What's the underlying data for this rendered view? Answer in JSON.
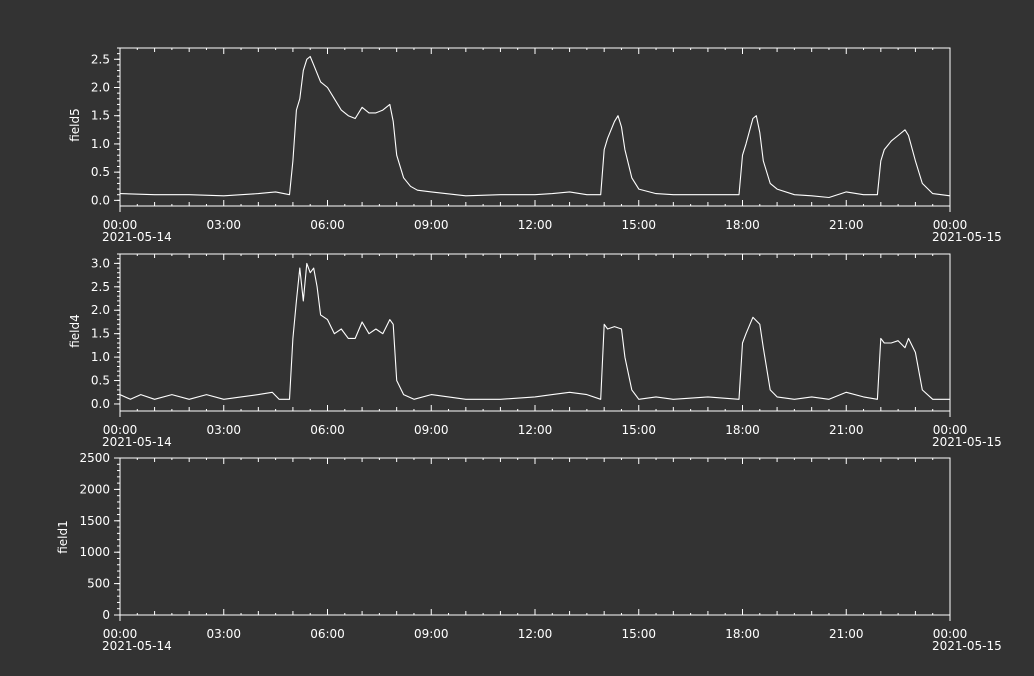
{
  "colors": {
    "background": "#333333",
    "foreground": "#ffffff"
  },
  "chart_data": [
    {
      "type": "line",
      "ylabel": "field5",
      "xlim": [
        "2021-05-14 00:00",
        "2021-05-15 00:00"
      ],
      "ylim": [
        -0.1,
        2.7
      ],
      "yticks": [
        0.0,
        0.5,
        1.0,
        1.5,
        2.0,
        2.5
      ],
      "ytick_labels": [
        "0.0",
        "0.5",
        "1.0",
        "1.5",
        "2.0",
        "2.5"
      ],
      "xtick_labels": [
        "00:00",
        "03:00",
        "06:00",
        "09:00",
        "12:00",
        "15:00",
        "18:00",
        "21:00",
        "00:00"
      ],
      "xdate_labels": [
        "2021-05-14",
        "2021-05-15"
      ],
      "series": [
        {
          "x_hours": [
            0,
            1,
            2,
            3,
            4,
            4.5,
            4.9,
            5.0,
            5.1,
            5.2,
            5.3,
            5.4,
            5.5,
            5.6,
            5.8,
            6.0,
            6.2,
            6.4,
            6.6,
            6.8,
            7.0,
            7.2,
            7.4,
            7.6,
            7.8,
            7.9,
            8.0,
            8.2,
            8.4,
            8.6,
            9,
            10,
            11,
            12,
            12.5,
            13,
            13.5,
            13.9,
            14.0,
            14.1,
            14.3,
            14.4,
            14.5,
            14.6,
            14.8,
            15.0,
            15.5,
            16,
            17,
            17.9,
            18.0,
            18.1,
            18.3,
            18.4,
            18.5,
            18.6,
            18.8,
            19.0,
            19.5,
            20,
            20.5,
            21,
            21.5,
            21.9,
            22.0,
            22.1,
            22.3,
            22.5,
            22.7,
            22.8,
            23.0,
            23.2,
            23.5,
            24
          ],
          "y": [
            0.12,
            0.1,
            0.1,
            0.08,
            0.12,
            0.15,
            0.1,
            0.7,
            1.6,
            1.8,
            2.3,
            2.5,
            2.55,
            2.4,
            2.1,
            2.0,
            1.8,
            1.6,
            1.5,
            1.45,
            1.65,
            1.55,
            1.55,
            1.6,
            1.7,
            1.4,
            0.8,
            0.4,
            0.25,
            0.18,
            0.15,
            0.08,
            0.1,
            0.1,
            0.12,
            0.15,
            0.1,
            0.1,
            0.9,
            1.1,
            1.4,
            1.5,
            1.3,
            0.9,
            0.4,
            0.2,
            0.12,
            0.1,
            0.1,
            0.1,
            0.8,
            1.0,
            1.45,
            1.5,
            1.2,
            0.7,
            0.3,
            0.2,
            0.1,
            0.08,
            0.05,
            0.15,
            0.1,
            0.1,
            0.7,
            0.9,
            1.05,
            1.15,
            1.25,
            1.15,
            0.7,
            0.3,
            0.12,
            0.08
          ]
        }
      ]
    },
    {
      "type": "line",
      "ylabel": "field4",
      "xlim": [
        "2021-05-14 00:00",
        "2021-05-15 00:00"
      ],
      "ylim": [
        -0.15,
        3.2
      ],
      "yticks": [
        0.0,
        0.5,
        1.0,
        1.5,
        2.0,
        2.5,
        3.0
      ],
      "ytick_labels": [
        "0.0",
        "0.5",
        "1.0",
        "1.5",
        "2.0",
        "2.5",
        "3.0"
      ],
      "xtick_labels": [
        "00:00",
        "03:00",
        "06:00",
        "09:00",
        "12:00",
        "15:00",
        "18:00",
        "21:00",
        "00:00"
      ],
      "xdate_labels": [
        "2021-05-14",
        "2021-05-15"
      ],
      "series": [
        {
          "x_hours": [
            0,
            0.3,
            0.6,
            1,
            1.5,
            2,
            2.5,
            3,
            3.5,
            4,
            4.4,
            4.6,
            4.9,
            5.0,
            5.1,
            5.2,
            5.3,
            5.4,
            5.5,
            5.6,
            5.7,
            5.8,
            6.0,
            6.2,
            6.4,
            6.6,
            6.8,
            7.0,
            7.2,
            7.4,
            7.6,
            7.8,
            7.9,
            8.0,
            8.2,
            8.5,
            9,
            10,
            11,
            12,
            12.5,
            13,
            13.5,
            13.9,
            14.0,
            14.1,
            14.3,
            14.5,
            14.6,
            14.8,
            15.0,
            15.5,
            16,
            17,
            17.9,
            18.0,
            18.1,
            18.3,
            18.5,
            18.6,
            18.8,
            19.0,
            19.5,
            20,
            20.5,
            21,
            21.5,
            21.9,
            22.0,
            22.1,
            22.3,
            22.5,
            22.7,
            22.8,
            23.0,
            23.2,
            23.5,
            24
          ],
          "y": [
            0.2,
            0.1,
            0.2,
            0.1,
            0.2,
            0.1,
            0.2,
            0.1,
            0.15,
            0.2,
            0.25,
            0.1,
            0.1,
            1.4,
            2.2,
            2.9,
            2.2,
            3.0,
            2.8,
            2.9,
            2.5,
            1.9,
            1.8,
            1.5,
            1.6,
            1.4,
            1.4,
            1.75,
            1.5,
            1.6,
            1.5,
            1.8,
            1.7,
            0.5,
            0.2,
            0.1,
            0.2,
            0.1,
            0.1,
            0.15,
            0.2,
            0.25,
            0.2,
            0.1,
            1.7,
            1.6,
            1.65,
            1.6,
            1.0,
            0.3,
            0.1,
            0.15,
            0.1,
            0.15,
            0.1,
            1.3,
            1.5,
            1.85,
            1.7,
            1.2,
            0.3,
            0.15,
            0.1,
            0.15,
            0.1,
            0.25,
            0.15,
            0.1,
            1.4,
            1.3,
            1.3,
            1.35,
            1.2,
            1.4,
            1.1,
            0.3,
            0.1,
            0.1
          ]
        }
      ]
    },
    {
      "type": "line",
      "ylabel": "field1",
      "xlim": [
        "2021-05-14 00:00",
        "2021-05-15 00:00"
      ],
      "ylim": [
        0,
        2500
      ],
      "yticks": [
        0,
        500,
        1000,
        1500,
        2000,
        2500
      ],
      "ytick_labels": [
        "0",
        "500",
        "1000",
        "1500",
        "2000",
        "2500"
      ],
      "xtick_labels": [
        "00:00",
        "03:00",
        "06:00",
        "09:00",
        "12:00",
        "15:00",
        "18:00",
        "21:00",
        "00:00"
      ],
      "xdate_labels": [
        "2021-05-14",
        "2021-05-15"
      ],
      "series": [
        {
          "x_hours": [],
          "y": []
        }
      ]
    }
  ]
}
